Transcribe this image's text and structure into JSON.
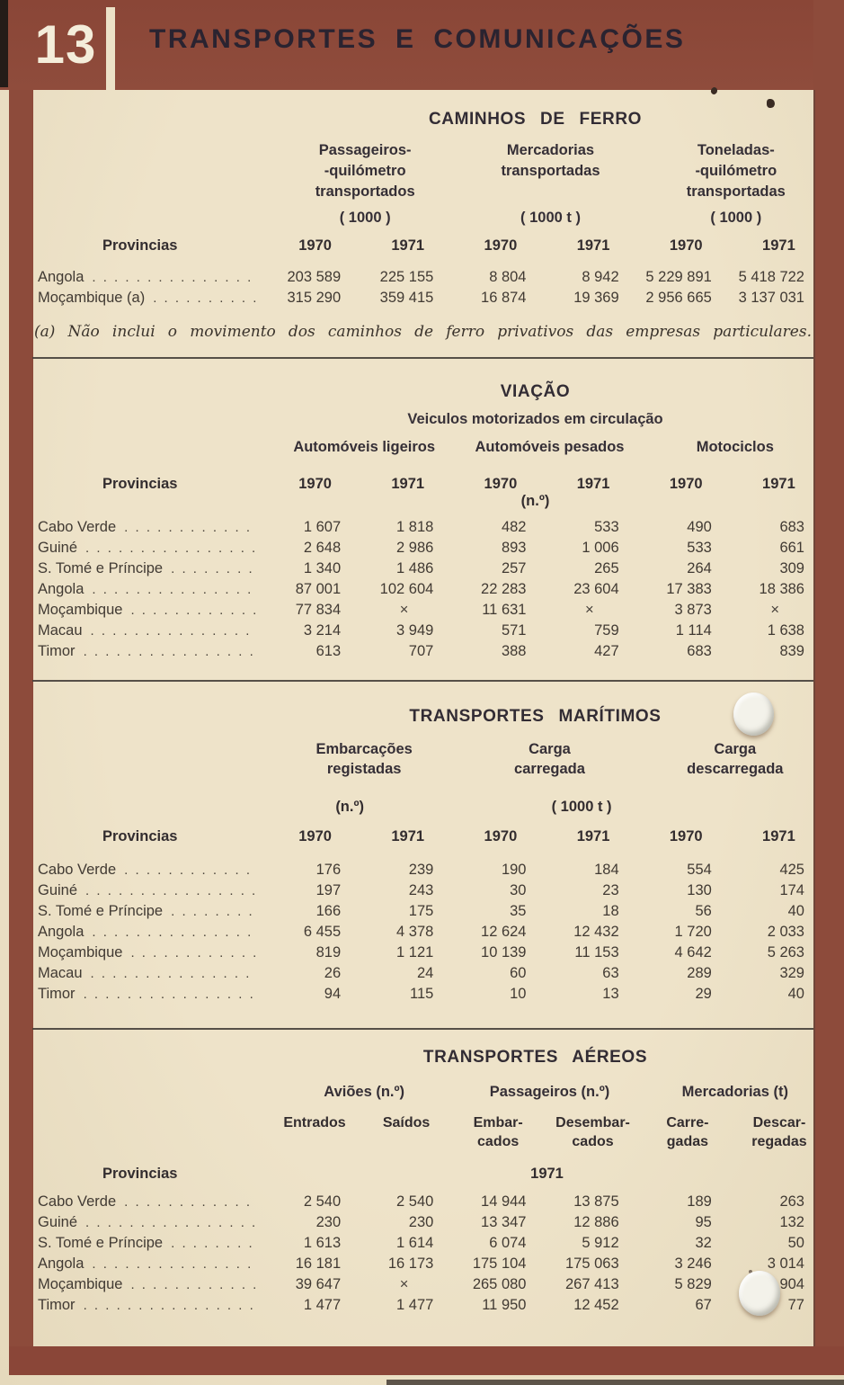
{
  "banner": {
    "number": "13",
    "title": "TRANSPORTES E COMUNICAÇÕES"
  },
  "common": {
    "provinces_label": "Provincias"
  },
  "railways": {
    "title": "CAMINHOS DE FERRO",
    "col_groups": [
      {
        "label": "Passageiros-\n-quilómetro\ntransportados",
        "unit": "( 1000 )"
      },
      {
        "label": "Mercadorias\ntransportadas",
        "unit": "( 1000 t )"
      },
      {
        "label": "Toneladas-\n-quilómetro\ntransportadas",
        "unit": "( 1000 )"
      }
    ],
    "years": [
      "1970",
      "1971",
      "1970",
      "1971",
      "1970",
      "1971"
    ],
    "rows": [
      {
        "name": "Angola",
        "values": [
          "203 589",
          "225 155",
          "8 804",
          "8 942",
          "5 229 891",
          "5 418 722"
        ]
      },
      {
        "name": "Moçambique (a)",
        "values": [
          "315 290",
          "359 415",
          "16 874",
          "19 369",
          "2 956 665",
          "3 137 031"
        ]
      }
    ],
    "footnote": "(a) Não inclui o movimento dos caminhos de ferro privativos das empresas particulares."
  },
  "road": {
    "title": "VIAÇÃO",
    "subtitle": "Veiculos motorizados em circulação",
    "col_groups": [
      {
        "label": "Automóveis ligeiros"
      },
      {
        "label": "Automóveis pesados"
      },
      {
        "label": "Motociclos"
      }
    ],
    "years": [
      "1970",
      "1971",
      "1970",
      "1971",
      "1970",
      "1971"
    ],
    "unit": "(n.º)",
    "rows": [
      {
        "name": "Cabo Verde",
        "values": [
          "1 607",
          "1 818",
          "482",
          "533",
          "490",
          "683"
        ]
      },
      {
        "name": "Guiné",
        "values": [
          "2 648",
          "2 986",
          "893",
          "1 006",
          "533",
          "661"
        ]
      },
      {
        "name": "S. Tomé e Príncipe",
        "values": [
          "1 340",
          "1 486",
          "257",
          "265",
          "264",
          "309"
        ]
      },
      {
        "name": "Angola",
        "values": [
          "87 001",
          "102 604",
          "22 283",
          "23 604",
          "17 383",
          "18 386"
        ]
      },
      {
        "name": "Moçambique",
        "values": [
          "77 834",
          "×",
          "11 631",
          "×",
          "3 873",
          "×"
        ]
      },
      {
        "name": "Macau",
        "values": [
          "3 214",
          "3 949",
          "571",
          "759",
          "1 114",
          "1 638"
        ]
      },
      {
        "name": "Timor",
        "values": [
          "613",
          "707",
          "388",
          "427",
          "683",
          "839"
        ]
      }
    ]
  },
  "maritime": {
    "title": "TRANSPORTES MARÍTIMOS",
    "col_groups": [
      {
        "label": "Embarcações\nregistadas"
      },
      {
        "label": "Carga\ncarregada"
      },
      {
        "label": "Carga\ndescarregada"
      }
    ],
    "unit_left": "(n.º)",
    "unit_right": "( 1000 t )",
    "years": [
      "1970",
      "1971",
      "1970",
      "1971",
      "1970",
      "1971"
    ],
    "rows": [
      {
        "name": "Cabo Verde",
        "values": [
          "176",
          "239",
          "190",
          "184",
          "554",
          "425"
        ]
      },
      {
        "name": "Guiné",
        "values": [
          "197",
          "243",
          "30",
          "23",
          "130",
          "174"
        ]
      },
      {
        "name": "S. Tomé e Príncipe",
        "values": [
          "166",
          "175",
          "35",
          "18",
          "56",
          "40"
        ]
      },
      {
        "name": "Angola",
        "values": [
          "6 455",
          "4 378",
          "12 624",
          "12 432",
          "1 720",
          "2 033"
        ]
      },
      {
        "name": "Moçambique",
        "values": [
          "819",
          "1 121",
          "10 139",
          "11 153",
          "4 642",
          "5 263"
        ]
      },
      {
        "name": "Macau",
        "values": [
          "26",
          "24",
          "60",
          "63",
          "289",
          "329"
        ]
      },
      {
        "name": "Timor",
        "values": [
          "94",
          "115",
          "10",
          "13",
          "29",
          "40"
        ]
      }
    ]
  },
  "air": {
    "title": "TRANSPORTES AÉREOS",
    "col_groups": [
      {
        "label": "Aviões (n.º)"
      },
      {
        "label": "Passageiros (n.º)"
      },
      {
        "label": "Mercadorias (t)"
      }
    ],
    "sub_cols": [
      "Entrados",
      "Saídos",
      "Embar-\ncados",
      "Desembar-\ncados",
      "Carre-\ngadas",
      "Descar-\nregadas"
    ],
    "year": "1971",
    "rows": [
      {
        "name": "Cabo Verde",
        "values": [
          "2 540",
          "2 540",
          "14 944",
          "13 875",
          "189",
          "263"
        ]
      },
      {
        "name": "Guiné",
        "values": [
          "230",
          "230",
          "13 347",
          "12 886",
          "95",
          "132"
        ]
      },
      {
        "name": "S. Tomé e Príncipe",
        "values": [
          "1 613",
          "1 614",
          "6 074",
          "5 912",
          "32",
          "50"
        ]
      },
      {
        "name": "Angola",
        "values": [
          "16 181",
          "16 173",
          "175 104",
          "175 063",
          "3 246",
          "3 014"
        ]
      },
      {
        "name": "Moçambique",
        "values": [
          "39 647",
          "×",
          "265 080",
          "267 413",
          "5 829",
          "904"
        ]
      },
      {
        "name": "Timor",
        "values": [
          "1 477",
          "1 477",
          "11 950",
          "12 452",
          "67",
          "77"
        ]
      }
    ]
  }
}
